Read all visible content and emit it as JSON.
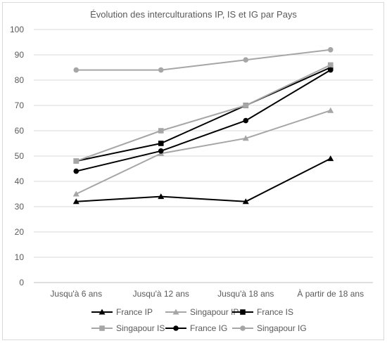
{
  "chart_data": {
    "type": "line",
    "title": "Évolution des interculturations IP, IS et IG par Pays",
    "xlabel": "",
    "ylabel": "",
    "categories": [
      "Jusqu'à 6 ans",
      "Jusqu'à 12 ans",
      "Jusqu'à 18 ans",
      "À partir de 18 ans"
    ],
    "ylim": [
      0,
      100
    ],
    "yticks": [
      "0",
      "10",
      "20",
      "30",
      "40",
      "50",
      "60",
      "70",
      "80",
      "90",
      "100"
    ],
    "grid": true,
    "legend_position": "bottom",
    "series": [
      {
        "name": "France IP",
        "values": [
          32,
          34,
          32,
          49
        ],
        "color": "#000000",
        "marker": "triangle"
      },
      {
        "name": "Singapour IP",
        "values": [
          35,
          51,
          57,
          68
        ],
        "color": "#a6a6a6",
        "marker": "triangle"
      },
      {
        "name": "France IS",
        "values": [
          48,
          55,
          70,
          85
        ],
        "color": "#000000",
        "marker": "square"
      },
      {
        "name": "Singapour IS",
        "values": [
          48,
          60,
          70,
          86
        ],
        "color": "#a6a6a6",
        "marker": "square"
      },
      {
        "name": "France IG",
        "values": [
          44,
          52,
          64,
          84
        ],
        "color": "#000000",
        "marker": "circle"
      },
      {
        "name": "Singapour IG",
        "values": [
          84,
          84,
          88,
          92
        ],
        "color": "#a6a6a6",
        "marker": "circle"
      }
    ]
  }
}
